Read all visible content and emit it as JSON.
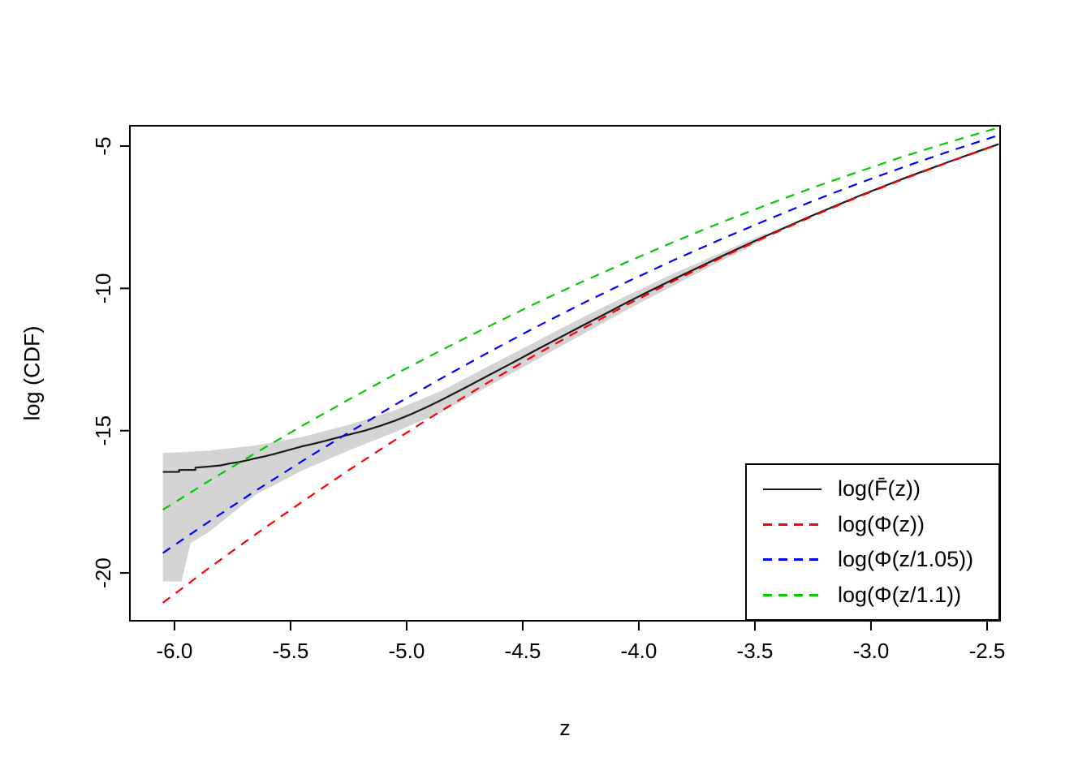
{
  "chart_data": {
    "type": "line",
    "title": "",
    "xlabel": "z",
    "ylabel": "log (CDF)",
    "xlim": [
      -6.192,
      -2.444
    ],
    "ylim": [
      -21.68,
      -4.287
    ],
    "grid": false,
    "x_ticks": [
      -6.0,
      -5.5,
      -5.0,
      -4.5,
      -4.0,
      -3.5,
      -3.0,
      -2.5
    ],
    "x_tick_labels": [
      "-6.0",
      "-5.5",
      "-5.0",
      "-4.5",
      "-4.0",
      "-3.5",
      "-3.0",
      "-2.5"
    ],
    "y_ticks": [
      -20,
      -15,
      -10,
      -5
    ],
    "y_tick_labels": [
      "-20",
      "-15",
      "-10",
      "-5"
    ],
    "band": {
      "name": "empirical-confidence-band",
      "color": "#D4D4D4",
      "x": [
        -6.05,
        -5.97,
        -5.93,
        -5.85,
        -5.65,
        -5.45,
        -5.25,
        -5.05,
        -4.85,
        -4.65,
        -4.45,
        -4.25,
        -4.05,
        -3.85,
        -3.65,
        -3.45
      ],
      "lower": [
        -20.3,
        -20.3,
        -18.95,
        -18.55,
        -17.25,
        -16.4,
        -15.7,
        -15.05,
        -14.35,
        -13.45,
        -12.55,
        -11.65,
        -10.75,
        -9.9,
        -9.05,
        -8.25
      ],
      "upper": [
        -15.78,
        -15.76,
        -15.74,
        -15.7,
        -15.52,
        -15.22,
        -14.8,
        -14.28,
        -13.6,
        -12.75,
        -11.9,
        -11.05,
        -10.25,
        -9.48,
        -8.76,
        -8.05
      ]
    },
    "series": [
      {
        "name": "log(F̄(z))",
        "color": "#1a1a1a",
        "dash": "solid",
        "x": [
          -6.05,
          -5.98,
          -5.98,
          -5.91,
          -5.91,
          -5.85,
          -5.8,
          -5.76,
          -5.72,
          -5.68,
          -5.65,
          -5.61,
          -5.57,
          -5.53,
          -5.49,
          -5.45,
          -5.4,
          -5.35,
          -5.3,
          -5.25,
          -5.18,
          -5.11,
          -5.05,
          -4.98,
          -4.91,
          -4.85,
          -4.75,
          -4.65,
          -4.55,
          -4.45,
          -4.35,
          -4.25,
          -4.15,
          -4.05,
          -3.95,
          -3.85,
          -3.75,
          -3.65,
          -3.55,
          -3.45,
          -3.35,
          -3.25,
          -3.15,
          -3.05,
          -2.95,
          -2.85,
          -2.75,
          -2.65,
          -2.55,
          -2.45
        ],
        "y": [
          -16.45,
          -16.45,
          -16.38,
          -16.38,
          -16.3,
          -16.26,
          -16.22,
          -16.15,
          -16.1,
          -16.03,
          -15.97,
          -15.9,
          -15.82,
          -15.73,
          -15.64,
          -15.55,
          -15.46,
          -15.36,
          -15.25,
          -15.14,
          -15.0,
          -14.82,
          -14.65,
          -14.42,
          -14.16,
          -13.92,
          -13.5,
          -13.07,
          -12.64,
          -12.2,
          -11.77,
          -11.34,
          -10.92,
          -10.49,
          -10.08,
          -9.68,
          -9.29,
          -8.9,
          -8.52,
          -8.15,
          -7.79,
          -7.43,
          -7.09,
          -6.75,
          -6.43,
          -6.11,
          -5.81,
          -5.51,
          -5.22,
          -4.93
        ]
      },
      {
        "name": "log(Φ(z))",
        "color": "#FF0000",
        "dash": "dashed",
        "x": [
          -6.05,
          -5.85,
          -5.65,
          -5.45,
          -5.25,
          -5.05,
          -4.85,
          -4.65,
          -4.45,
          -4.25,
          -4.05,
          -3.85,
          -3.65,
          -3.45,
          -3.25,
          -3.05,
          -2.85,
          -2.65,
          -2.45
        ],
        "y": [
          -21.05,
          -19.82,
          -18.64,
          -17.5,
          -16.39,
          -15.33,
          -14.3,
          -13.31,
          -12.36,
          -11.45,
          -10.57,
          -9.74,
          -8.94,
          -8.18,
          -7.46,
          -6.77,
          -6.13,
          -5.52,
          -4.94
        ]
      },
      {
        "name": "log(Φ(z/1.05))",
        "color": "#0000FF",
        "dash": "dashed",
        "x": [
          -6.05,
          -5.85,
          -5.65,
          -5.45,
          -5.25,
          -5.05,
          -4.85,
          -4.65,
          -4.45,
          -4.25,
          -4.05,
          -3.85,
          -3.65,
          -3.45,
          -3.25,
          -3.05,
          -2.85,
          -2.65,
          -2.45
        ],
        "y": [
          -19.3,
          -18.19,
          -17.11,
          -16.07,
          -15.07,
          -14.09,
          -13.16,
          -12.26,
          -11.39,
          -10.56,
          -9.77,
          -9.01,
          -8.29,
          -7.6,
          -6.93,
          -6.3,
          -5.71,
          -5.15,
          -4.62
        ]
      },
      {
        "name": "log(Φ(z/1.1))",
        "color": "#00CC00",
        "dash": "dashed",
        "x": [
          -6.05,
          -5.85,
          -5.65,
          -5.45,
          -5.25,
          -5.05,
          -4.85,
          -4.65,
          -4.45,
          -4.25,
          -4.05,
          -3.85,
          -3.65,
          -3.45,
          -3.25,
          -3.05,
          -2.85,
          -2.65,
          -2.45
        ],
        "y": [
          -17.78,
          -16.76,
          -15.78,
          -14.83,
          -13.91,
          -13.02,
          -12.17,
          -11.35,
          -10.55,
          -9.79,
          -9.07,
          -8.37,
          -7.7,
          -7.07,
          -6.46,
          -5.89,
          -5.34,
          -4.83,
          -4.35
        ]
      }
    ],
    "legend": {
      "position": "bottomright",
      "entries": [
        {
          "label": "log(F̄(z))"
        },
        {
          "label": "log(Φ(z))"
        },
        {
          "label": "log(Φ(z/1.05))"
        },
        {
          "label": "log(Φ(z/1.1))"
        }
      ]
    }
  }
}
